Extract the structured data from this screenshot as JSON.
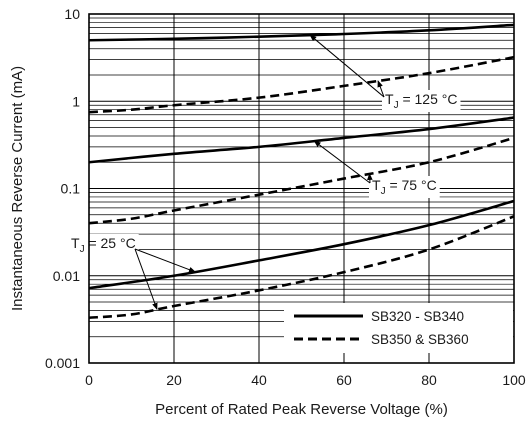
{
  "chart_data": {
    "type": "line",
    "xlabel": "Percent of Rated Peak Reverse Voltage (%)",
    "ylabel": "Instantaneous Reverse Current (mA)",
    "xlim": [
      0,
      100
    ],
    "ylim": [
      0.001,
      10
    ],
    "yscale": "log",
    "grid": true,
    "x_ticks": [
      0,
      20,
      40,
      60,
      80,
      100
    ],
    "x_tick_labels": [
      "0",
      "20",
      "40",
      "60",
      "80",
      "100"
    ],
    "y_ticks": [
      0.001,
      0.01,
      0.1,
      1,
      10
    ],
    "y_tick_labels": [
      "0.001",
      "0.01",
      "0.1",
      "1",
      "10"
    ],
    "legend": {
      "placement": "bottom-right",
      "entries": [
        {
          "label": "SB320 - SB340",
          "style": "solid"
        },
        {
          "label": "SB350 & SB360",
          "style": "dashed"
        }
      ]
    },
    "series": [
      {
        "group": "125",
        "style": "solid",
        "points": [
          [
            0,
            5.0
          ],
          [
            20,
            5.2
          ],
          [
            40,
            5.5
          ],
          [
            60,
            5.9
          ],
          [
            80,
            6.5
          ],
          [
            100,
            7.5
          ]
        ]
      },
      {
        "group": "125",
        "style": "dashed",
        "points": [
          [
            0,
            0.75
          ],
          [
            10,
            0.8
          ],
          [
            20,
            0.9
          ],
          [
            40,
            1.1
          ],
          [
            60,
            1.5
          ],
          [
            80,
            2.1
          ],
          [
            100,
            3.2
          ]
        ]
      },
      {
        "group": "75",
        "style": "solid",
        "points": [
          [
            0,
            0.2
          ],
          [
            20,
            0.25
          ],
          [
            40,
            0.3
          ],
          [
            60,
            0.38
          ],
          [
            80,
            0.48
          ],
          [
            100,
            0.65
          ]
        ]
      },
      {
        "group": "75",
        "style": "dashed",
        "points": [
          [
            0,
            0.04
          ],
          [
            10,
            0.045
          ],
          [
            20,
            0.056
          ],
          [
            40,
            0.085
          ],
          [
            60,
            0.13
          ],
          [
            80,
            0.2
          ],
          [
            100,
            0.38
          ]
        ]
      },
      {
        "group": "25",
        "style": "solid",
        "points": [
          [
            0,
            0.0072
          ],
          [
            20,
            0.01
          ],
          [
            40,
            0.015
          ],
          [
            60,
            0.023
          ],
          [
            80,
            0.038
          ],
          [
            100,
            0.072
          ]
        ]
      },
      {
        "group": "25",
        "style": "dashed",
        "points": [
          [
            0,
            0.0033
          ],
          [
            10,
            0.0036
          ],
          [
            20,
            0.0045
          ],
          [
            40,
            0.0068
          ],
          [
            60,
            0.011
          ],
          [
            80,
            0.02
          ],
          [
            100,
            0.048
          ]
        ]
      }
    ],
    "annotations": [
      {
        "text_main": "T",
        "text_sub": "J",
        "text_rest": " = 125 °C",
        "group": "125"
      },
      {
        "text_main": "T",
        "text_sub": "J",
        "text_rest": " = 75 °C",
        "group": "75"
      },
      {
        "text_main": "T",
        "text_sub": "J",
        "text_rest": " = 25 °C",
        "group": "25"
      }
    ]
  }
}
